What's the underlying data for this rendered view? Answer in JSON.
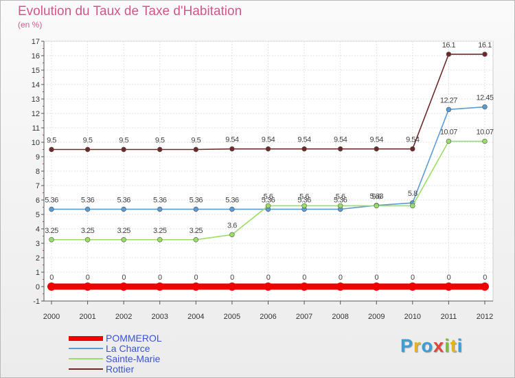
{
  "title": "Evolution du Taux de Taxe d'Habitation",
  "subtitle": "(en %)",
  "logo": {
    "text": [
      "P",
      "r",
      "o",
      "x",
      "i",
      "t",
      "i"
    ],
    "colors": [
      "#3a9fd8",
      "#e8b322",
      "#3a9fd8",
      "#e2453a",
      "#7bbf3a",
      "#e8b322",
      "#3a9fd8"
    ]
  },
  "chart_data": {
    "type": "line",
    "title": "Evolution du Taux de Taxe d'Habitation",
    "ylabel": "(en %)",
    "xlabel": "",
    "x": [
      "2000",
      "2001",
      "2002",
      "2003",
      "2004",
      "2005",
      "2006",
      "2007",
      "2008",
      "2009",
      "2010",
      "2011",
      "2012"
    ],
    "ylim": [
      -1,
      17
    ],
    "yticks": [
      -1,
      0,
      1,
      2,
      3,
      4,
      5,
      6,
      7,
      8,
      9,
      10,
      11,
      12,
      13,
      14,
      15,
      16,
      17
    ],
    "grid": true,
    "legend_position": "bottom-left",
    "series": [
      {
        "name": "POMMEROL",
        "color": "#ee0000",
        "values": [
          0,
          0,
          0,
          0,
          0,
          0,
          0,
          0,
          0,
          0,
          0,
          0,
          0
        ],
        "labels": [
          "0",
          "0",
          "0",
          "0",
          "0",
          "0",
          "0",
          "0",
          "0",
          "0",
          "0",
          "0",
          "0"
        ]
      },
      {
        "name": "La Charce",
        "color": "#5b9bd5",
        "values": [
          5.36,
          5.36,
          5.36,
          5.36,
          5.36,
          5.36,
          5.36,
          5.36,
          5.36,
          5.63,
          5.8,
          12.27,
          12.45
        ],
        "labels": [
          "5.36",
          "5.36",
          "5.36",
          "5.36",
          "5.36",
          "5.36",
          "5.36",
          "5.36",
          "5.36",
          "5.63",
          "5.8",
          "12.27",
          "12.45"
        ]
      },
      {
        "name": "Sainte-Marie",
        "color": "#99dd66",
        "values": [
          3.25,
          3.25,
          3.25,
          3.25,
          3.25,
          3.6,
          5.6,
          5.6,
          5.6,
          5.6,
          5.6,
          10.07,
          10.07
        ],
        "labels": [
          "3.25",
          "3.25",
          "3.25",
          "3.25",
          "3.25",
          "3.6",
          "5.6",
          "5.6",
          "5.6",
          "5.6",
          "",
          "10.07",
          "10.07"
        ]
      },
      {
        "name": "Rottier",
        "color": "#6b2a2a",
        "values": [
          9.5,
          9.5,
          9.5,
          9.5,
          9.5,
          9.54,
          9.54,
          9.54,
          9.54,
          9.54,
          9.54,
          16.1,
          16.1
        ],
        "labels": [
          "9.5",
          "9.5",
          "9.5",
          "9.5",
          "9.5",
          "9.54",
          "9.54",
          "9.54",
          "9.54",
          "9.54",
          "9.54",
          "16.1",
          "16.1"
        ]
      }
    ]
  }
}
